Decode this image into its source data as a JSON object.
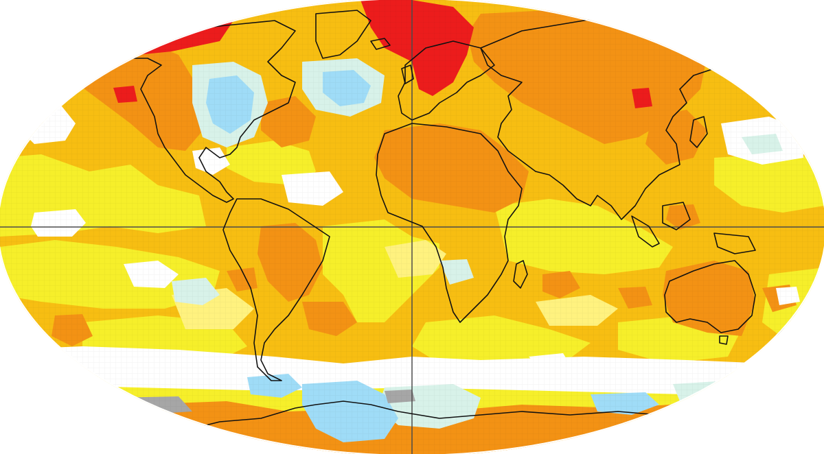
{
  "map": {
    "projection": "robinson",
    "palette": {
      "white": "#ffffff",
      "yellow_light": "#fff27f",
      "yellow": "#f6ef2a",
      "amber": "#f7be12",
      "orange": "#f39214",
      "red": "#ec1c1c",
      "cyan_light": "#d8f2e9",
      "cyan": "#9fdcf7",
      "gray": "#a6a6a6",
      "coast": "#111111",
      "gridline": "#4a4a4a"
    },
    "gridlines": {
      "equator": true,
      "prime_meridian": true
    }
  }
}
